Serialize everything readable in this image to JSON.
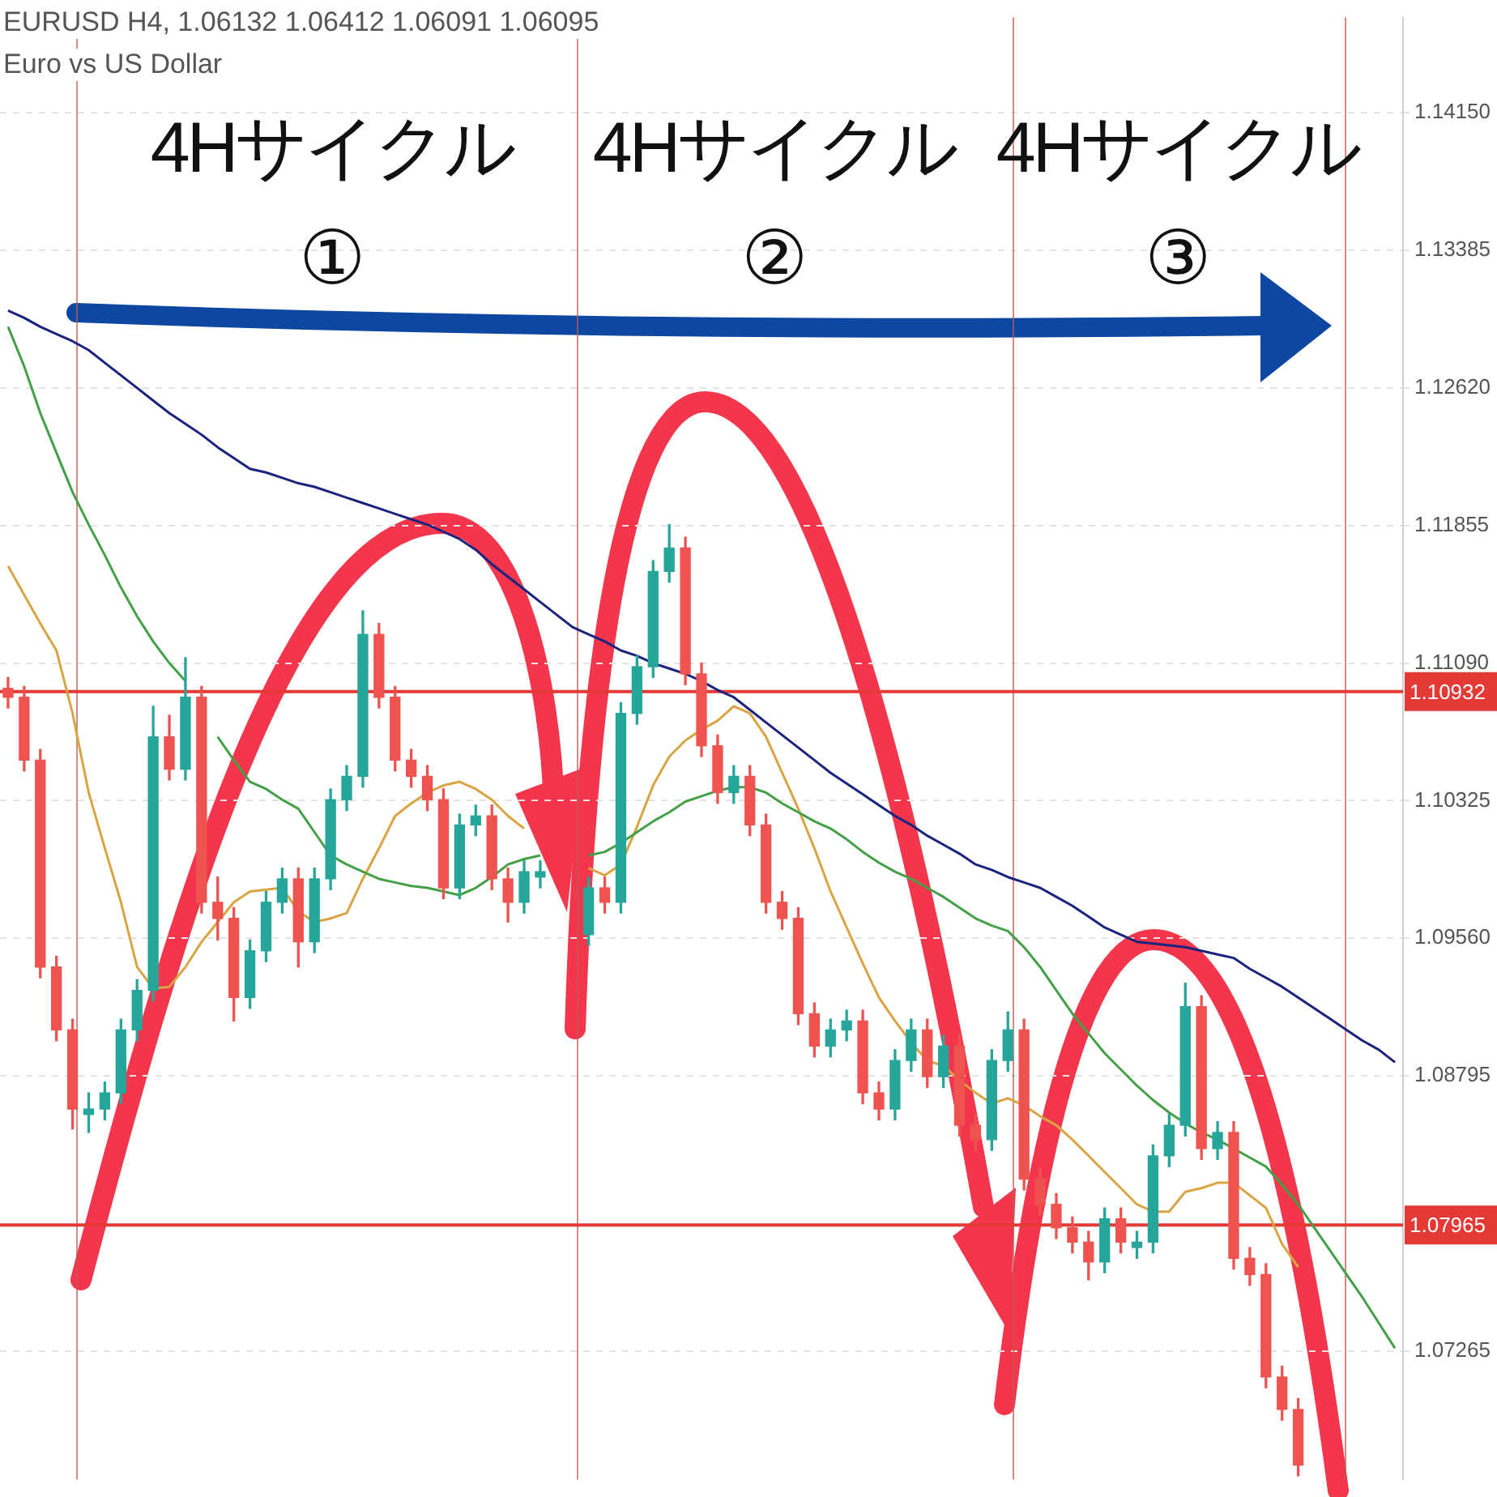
{
  "chart_data": {
    "type": "candlestick",
    "title": "EURUSD H4, 1.06132 1.06412 1.06091 1.06095",
    "subtitle": "Euro vs US Dollar",
    "categories": [
      null,
      null,
      null,
      null,
      null,
      null,
      null,
      null,
      null,
      null,
      null,
      null,
      null,
      null,
      null,
      null,
      null,
      null,
      null,
      null,
      null,
      null,
      null,
      null,
      null,
      null,
      null,
      null,
      null,
      null,
      null,
      null,
      null,
      null,
      null,
      null,
      null,
      null,
      null,
      null,
      null,
      null,
      null,
      null,
      null,
      null,
      null,
      null,
      null,
      null,
      null,
      null,
      null,
      null,
      null,
      null,
      null,
      null,
      null,
      null,
      null,
      null,
      null,
      null,
      null,
      null,
      null,
      null,
      null,
      null,
      null,
      null,
      null,
      null,
      null,
      null,
      null,
      null,
      null,
      null,
      null,
      null,
      null,
      null,
      null,
      null,
      null
    ],
    "colors": [
      "#ef5350",
      "#ef5350",
      "#ef5350",
      "#ef5350",
      "#ef5350",
      "#26a69a",
      "#26a69a",
      "#26a69a",
      "#26a69a",
      "#26a69a",
      "#ef5350",
      "#26a69a",
      "#ef5350",
      "#ef5350",
      "#ef5350",
      "#26a69a",
      "#26a69a",
      "#26a69a",
      "#ef5350",
      "#26a69a",
      "#26a69a",
      "#26a69a",
      "#26a69a",
      "#ef5350",
      "#ef5350",
      "#ef5350",
      "#ef5350",
      "#ef5350",
      "#26a69a",
      "#26a69a",
      "#ef5350",
      "#ef5350",
      "#26a69a",
      "#26a69a",
      null,
      null,
      "#26a69a",
      "#ef5350",
      "#26a69a",
      "#26a69a",
      "#26a69a",
      "#26a69a",
      "#ef5350",
      "#ef5350",
      "#ef5350",
      "#26a69a",
      "#ef5350",
      "#ef5350",
      "#ef5350",
      "#ef5350",
      "#ef5350",
      "#26a69a",
      "#26a69a",
      "#ef5350",
      "#ef5350",
      "#26a69a",
      "#26a69a",
      "#ef5350",
      "#26a69a",
      "#ef5350",
      "#ef5350",
      "#26a69a",
      "#26a69a",
      "#ef5350",
      "#ef5350",
      "#ef5350",
      "#ef5350",
      "#ef5350",
      "#26a69a",
      "#ef5350",
      "#26a69a",
      "#26a69a",
      "#26a69a",
      "#26a69a",
      "#ef5350",
      "#26a69a",
      "#ef5350",
      "#ef5350",
      "#ef5350",
      "#ef5350",
      "#ef5350",
      null,
      null,
      null,
      null,
      null,
      null
    ],
    "ohlc": [
      [
        1.1095,
        1.1101,
        1.1084,
        1.109
      ],
      [
        1.109,
        1.1096,
        1.1049,
        1.1055
      ],
      [
        1.1055,
        1.1061,
        1.0934,
        1.094
      ],
      [
        1.094,
        1.0946,
        1.0899,
        1.0905
      ],
      [
        1.0905,
        1.0911,
        1.085,
        1.0861
      ],
      [
        1.0858,
        1.087,
        1.0848,
        1.0861
      ],
      [
        1.0861,
        1.0876,
        1.0855,
        1.087
      ],
      [
        1.087,
        1.0911,
        1.0864,
        1.0905
      ],
      [
        1.0905,
        1.0933,
        1.0899,
        1.0927
      ],
      [
        1.0927,
        1.1085,
        1.0921,
        1.1068
      ],
      [
        1.1068,
        1.108,
        1.1044,
        1.105
      ],
      [
        1.105,
        1.1112,
        1.1044,
        1.109
      ],
      [
        1.109,
        1.1096,
        1.097,
        1.0976
      ],
      [
        1.0976,
        1.099,
        1.0955,
        1.0967
      ],
      [
        1.0967,
        1.0973,
        1.091,
        1.0923
      ],
      [
        1.0923,
        1.0955,
        1.0917,
        1.0949
      ],
      [
        1.0949,
        1.0982,
        1.0943,
        1.0976
      ],
      [
        1.0976,
        1.0995,
        1.097,
        1.0989
      ],
      [
        1.0989,
        1.0995,
        1.094,
        1.0954
      ],
      [
        1.0954,
        1.0995,
        1.0948,
        1.0989
      ],
      [
        1.0989,
        1.1039,
        1.0983,
        1.1033
      ],
      [
        1.1033,
        1.1052,
        1.1027,
        1.1046
      ],
      [
        1.1046,
        1.1138,
        1.104,
        1.1125
      ],
      [
        1.1125,
        1.1131,
        1.1084,
        1.109
      ],
      [
        1.109,
        1.1096,
        1.1049,
        1.1055
      ],
      [
        1.1055,
        1.1061,
        1.104,
        1.1046
      ],
      [
        1.1046,
        1.1052,
        1.1027,
        1.1033
      ],
      [
        1.1033,
        1.1039,
        1.0978,
        1.0984
      ],
      [
        1.0984,
        1.1025,
        1.0978,
        1.1019
      ],
      [
        1.1019,
        1.103,
        1.1013,
        1.1024
      ],
      [
        1.1024,
        1.103,
        1.0983,
        1.0989
      ],
      [
        1.0989,
        1.0995,
        1.0965,
        1.0976
      ],
      [
        1.0976,
        1.0999,
        1.097,
        1.0993
      ],
      [
        1.099,
        1.0999,
        1.0984,
        1.0993
      ],
      null,
      null,
      [
        1.0958,
        1.099,
        1.0952,
        1.0984
      ],
      [
        1.0984,
        1.099,
        1.097,
        1.0976
      ],
      [
        1.0976,
        1.1087,
        1.097,
        1.1081
      ],
      [
        1.1081,
        1.1113,
        1.1075,
        1.1107
      ],
      [
        1.1107,
        1.1166,
        1.1101,
        1.116
      ],
      [
        1.116,
        1.1186,
        1.1154,
        1.1173
      ],
      [
        1.1173,
        1.1179,
        1.1097,
        1.1103
      ],
      [
        1.1103,
        1.1109,
        1.1057,
        1.1063
      ],
      [
        1.1063,
        1.1069,
        1.1031,
        1.1037
      ],
      [
        1.1037,
        1.1052,
        1.1031,
        1.1046
      ],
      [
        1.1046,
        1.1052,
        1.1013,
        1.1019
      ],
      [
        1.1019,
        1.1025,
        1.097,
        1.0976
      ],
      [
        1.0976,
        1.0982,
        1.0961,
        1.0967
      ],
      [
        1.0967,
        1.0973,
        1.0908,
        1.0914
      ],
      [
        1.0914,
        1.092,
        1.089,
        1.0896
      ],
      [
        1.0896,
        1.0911,
        1.089,
        1.0905
      ],
      [
        1.0905,
        1.0916,
        1.0899,
        1.091
      ],
      [
        1.091,
        1.0916,
        1.0864,
        1.087
      ],
      [
        1.087,
        1.0876,
        1.0855,
        1.0861
      ],
      [
        1.0861,
        1.0894,
        1.0855,
        1.0888
      ],
      [
        1.0888,
        1.0911,
        1.0882,
        1.0905
      ],
      [
        1.0905,
        1.0911,
        1.0873,
        1.0879
      ],
      [
        1.0879,
        1.0902,
        1.0873,
        1.0896
      ],
      [
        1.0896,
        1.0902,
        1.0846,
        1.0852
      ],
      [
        1.0852,
        1.0858,
        1.0838,
        1.0844
      ],
      [
        1.0844,
        1.0894,
        1.0838,
        1.0888
      ],
      [
        1.0888,
        1.0915,
        1.0882,
        1.0905
      ],
      [
        1.0905,
        1.0911,
        1.0816,
        1.0822
      ],
      [
        1.0822,
        1.0828,
        1.0802,
        1.0808
      ],
      [
        1.0808,
        1.0814,
        1.0789,
        1.0795
      ],
      [
        1.0795,
        1.0801,
        1.0781,
        1.0787
      ],
      [
        1.0787,
        1.0793,
        1.0766,
        1.0776
      ],
      [
        1.0776,
        1.0806,
        1.077,
        1.08
      ],
      [
        1.08,
        1.0806,
        1.0781,
        1.0787
      ],
      [
        1.0784,
        1.0793,
        1.0778,
        1.0787
      ],
      [
        1.0787,
        1.0841,
        1.0781,
        1.0835
      ],
      [
        1.0835,
        1.0858,
        1.0829,
        1.0852
      ],
      [
        1.0852,
        1.0931,
        1.0846,
        1.0918
      ],
      [
        1.0918,
        1.0924,
        1.0833,
        1.0839
      ],
      [
        1.0839,
        1.0854,
        1.0833,
        1.0848
      ],
      [
        1.0848,
        1.0854,
        1.0772,
        1.0778
      ],
      [
        1.0778,
        1.0784,
        1.0763,
        1.0769
      ],
      [
        1.0769,
        1.0775,
        1.0706,
        1.0712
      ],
      [
        1.0712,
        1.0718,
        1.0688,
        1.0694
      ],
      [
        1.0694,
        1.07,
        1.0657,
        1.0663
      ],
      null,
      null,
      null,
      null,
      null,
      null
    ],
    "series": [
      {
        "type": "line",
        "color": "#1a237e",
        "values": [
          1.1305,
          1.1301,
          1.1296,
          1.1292,
          1.1288,
          1.1283,
          1.1276,
          1.1269,
          1.1262,
          1.1255,
          1.1248,
          1.1242,
          1.1236,
          1.1229,
          1.1223,
          1.1217,
          1.1215,
          1.1212,
          1.1209,
          1.1207,
          1.1204,
          1.1201,
          1.1198,
          1.1195,
          1.1192,
          1.1189,
          1.1186,
          1.1182,
          1.1178,
          1.1172,
          1.1164,
          1.1157,
          1.115,
          1.1143,
          1.1136,
          1.1129,
          1.1125,
          1.1121,
          1.1116,
          1.1113,
          1.1109,
          1.1106,
          1.1103,
          1.1099,
          1.1094,
          1.109,
          1.1083,
          1.1076,
          1.1069,
          1.1062,
          1.1055,
          1.1048,
          1.1042,
          1.1036,
          1.103,
          1.1024,
          1.1019,
          1.1013,
          1.1008,
          1.1003,
          1.0997,
          1.0994,
          1.099,
          1.0987,
          1.0984,
          1.0979,
          1.0974,
          1.0968,
          1.0962,
          1.0958,
          1.0954,
          1.0953,
          1.0952,
          1.0951,
          1.0949,
          1.0947,
          1.0945,
          1.0939,
          1.0934,
          1.0929,
          1.0923,
          1.0917,
          1.0911,
          1.0905,
          1.0899,
          1.0894,
          1.0887
        ]
      },
      {
        "type": "line",
        "color": "#43a047",
        "values": [
          1.1296,
          1.1274,
          1.1248,
          1.1226,
          1.1204,
          1.1186,
          1.1169,
          1.1151,
          1.1135,
          1.1121,
          1.1109,
          1.1099,
          null,
          1.1068,
          1.1055,
          1.1043,
          1.1039,
          1.1033,
          1.1028,
          1.1015,
          1.1002,
          1.0997,
          1.0993,
          1.0989,
          1.0987,
          1.0985,
          1.0984,
          1.0982,
          1.098,
          1.0984,
          1.099,
          1.0997,
          1.1,
          1.1002,
          null,
          null,
          1.1002,
          1.1004,
          1.1009,
          1.1015,
          1.1021,
          1.1026,
          1.1032,
          1.1035,
          1.1038,
          1.104,
          1.104,
          1.1037,
          1.1031,
          1.1026,
          1.1021,
          1.1017,
          1.1011,
          1.1004,
          1.0998,
          1.0993,
          1.0989,
          1.0984,
          1.0979,
          1.0973,
          1.0967,
          1.0963,
          1.096,
          1.0951,
          1.094,
          1.0927,
          1.0914,
          1.0903,
          1.0892,
          1.0883,
          1.0874,
          1.0866,
          1.0859,
          1.0853,
          1.0848,
          1.0844,
          1.0839,
          1.0834,
          1.0829,
          1.0819,
          1.0808,
          1.0795,
          1.0782,
          1.0769,
          1.0756,
          1.0742,
          1.0728
        ]
      },
      {
        "type": "line",
        "color": "#d9a441",
        "values": [
          1.1163,
          1.1147,
          1.1131,
          1.1116,
          1.1081,
          1.1037,
          1.1006,
          1.0976,
          1.094,
          1.0928,
          1.0929,
          1.094,
          1.0954,
          1.0965,
          1.0976,
          1.0982,
          1.0983,
          1.0984,
          1.0971,
          1.0965,
          1.0967,
          1.097,
          1.0989,
          1.1006,
          1.1024,
          1.1031,
          1.1037,
          1.1041,
          1.1043,
          1.1039,
          1.1033,
          1.1024,
          1.1017,
          null,
          null,
          null,
          1.0995,
          1.0991,
          1.0997,
          1.1018,
          1.1041,
          1.1057,
          1.1066,
          1.1072,
          1.1077,
          1.1085,
          1.1081,
          1.1068,
          1.1048,
          1.1028,
          1.1006,
          1.0982,
          1.0962,
          1.0942,
          1.0923,
          1.091,
          1.0898,
          1.0888,
          1.0885,
          1.0877,
          1.087,
          1.0864,
          1.0867,
          1.0863,
          1.0857,
          1.0852,
          1.0844,
          1.0835,
          1.0826,
          1.0817,
          1.0808,
          1.0804,
          1.0804,
          1.0815,
          1.0817,
          1.082,
          1.082,
          1.0813,
          1.0806,
          1.0786,
          1.0773,
          null,
          null,
          null,
          null,
          null,
          null
        ]
      }
    ],
    "ylim": [
      1.0655,
      1.1468
    ],
    "yticks": [
      {
        "value": 1.1415,
        "label": "1.14150"
      },
      {
        "value": 1.13385,
        "label": "1.13385"
      },
      {
        "value": 1.1262,
        "label": "1.12620"
      },
      {
        "value": 1.11855,
        "label": "1.11855"
      },
      {
        "value": 1.1109,
        "label": "1.11090"
      },
      {
        "value": 1.10325,
        "label": "1.10325"
      },
      {
        "value": 1.0956,
        "label": "1.09560"
      },
      {
        "value": 1.08795,
        "label": "1.08795"
      },
      {
        "value": 1.07265,
        "label": "1.07265"
      }
    ],
    "ref_lines": [
      {
        "axis": "y",
        "value": 1.10932,
        "label": "1.10932",
        "color": "#e53935"
      },
      {
        "axis": "y",
        "value": 1.07965,
        "label": "1.07965",
        "color": "#e53935"
      }
    ],
    "annotations": [
      "4Hサイクル\n①",
      "4Hサイクル\n②",
      "4Hサイクル\n③"
    ],
    "grid": "y",
    "legend": false,
    "marker": "none",
    "line_style": "solid"
  }
}
